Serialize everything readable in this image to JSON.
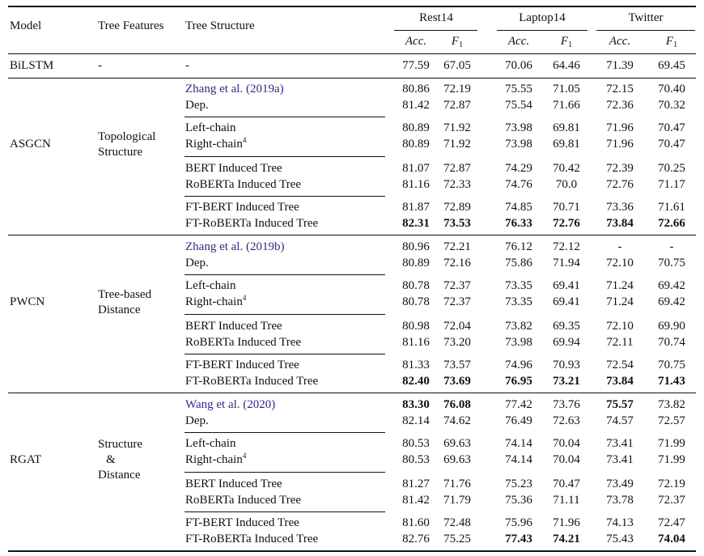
{
  "header": {
    "model": "Model",
    "features": "Tree Features",
    "structure": "Tree Structure",
    "datasets": [
      "Rest14",
      "Laptop14",
      "Twitter"
    ],
    "metrics": [
      {
        "base": "Acc.",
        "sub": ""
      },
      {
        "base": "F",
        "sub": "1"
      }
    ]
  },
  "baseline": {
    "model": "BiLSTM",
    "features": "-",
    "structure": "-",
    "values": [
      "77.59",
      "67.05",
      "70.06",
      "64.46",
      "71.39",
      "69.45"
    ]
  },
  "sections": [
    {
      "model": "ASGCN",
      "features": [
        "Topological",
        "Structure"
      ],
      "rows": [
        {
          "structure": "Zhang et al. (2019a)",
          "link": true,
          "values": [
            "80.86",
            "72.19",
            "75.55",
            "71.05",
            "72.15",
            "70.40"
          ],
          "bold": []
        },
        {
          "structure": "Dep.",
          "values": [
            "81.42",
            "72.87",
            "75.54",
            "71.66",
            "72.36",
            "70.32"
          ],
          "bold": []
        },
        {
          "structure": "Left-chain",
          "values": [
            "80.89",
            "71.92",
            "73.98",
            "69.81",
            "71.96",
            "70.47"
          ],
          "bold": []
        },
        {
          "structure": "Right-chain",
          "sup": "4",
          "values": [
            "80.89",
            "71.92",
            "73.98",
            "69.81",
            "71.96",
            "70.47"
          ],
          "bold": []
        },
        {
          "structure": "BERT Induced Tree",
          "values": [
            "81.07",
            "72.87",
            "74.29",
            "70.42",
            "72.39",
            "70.25"
          ],
          "bold": []
        },
        {
          "structure": "RoBERTa Induced Tree",
          "values": [
            "81.16",
            "72.33",
            "74.76",
            "70.0",
            "72.76",
            "71.17"
          ],
          "bold": []
        },
        {
          "structure": "FT-BERT Induced Tree",
          "values": [
            "81.87",
            "72.89",
            "74.85",
            "70.71",
            "73.36",
            "71.61"
          ],
          "bold": []
        },
        {
          "structure": "FT-RoBERTa Induced Tree",
          "values": [
            "82.31",
            "73.53",
            "76.33",
            "72.76",
            "73.84",
            "72.66"
          ],
          "bold": [
            0,
            1,
            2,
            3,
            4,
            5
          ]
        }
      ]
    },
    {
      "model": "PWCN",
      "features": [
        "Tree-based",
        "Distance"
      ],
      "rows": [
        {
          "structure": "Zhang et al. (2019b)",
          "link": true,
          "values": [
            "80.96",
            "72.21",
            "76.12",
            "72.12",
            "-",
            "-"
          ],
          "bold": []
        },
        {
          "structure": "Dep.",
          "values": [
            "80.89",
            "72.16",
            "75.86",
            "71.94",
            "72.10",
            "70.75"
          ],
          "bold": []
        },
        {
          "structure": "Left-chain",
          "values": [
            "80.78",
            "72.37",
            "73.35",
            "69.41",
            "71.24",
            "69.42"
          ],
          "bold": []
        },
        {
          "structure": "Right-chain",
          "sup": "4",
          "values": [
            "80.78",
            "72.37",
            "73.35",
            "69.41",
            "71.24",
            "69.42"
          ],
          "bold": []
        },
        {
          "structure": "BERT Induced Tree",
          "values": [
            "80.98",
            "72.04",
            "73.82",
            "69.35",
            "72.10",
            "69.90"
          ],
          "bold": []
        },
        {
          "structure": "RoBERTa Induced Tree",
          "values": [
            "81.16",
            "73.20",
            "73.98",
            "69.94",
            "72.11",
            "70.74"
          ],
          "bold": []
        },
        {
          "structure": "FT-BERT Induced Tree",
          "values": [
            "81.33",
            "73.57",
            "74.96",
            "70.93",
            "72.54",
            "70.75"
          ],
          "bold": []
        },
        {
          "structure": "FT-RoBERTa Induced Tree",
          "values": [
            "82.40",
            "73.69",
            "76.95",
            "73.21",
            "73.84",
            "71.43"
          ],
          "bold": [
            0,
            1,
            2,
            3,
            4,
            5
          ]
        }
      ]
    },
    {
      "model": "RGAT",
      "features": [
        "Structure",
        "&",
        "Distance"
      ],
      "rows": [
        {
          "structure": "Wang et al. (2020)",
          "link": true,
          "values": [
            "83.30",
            "76.08",
            "77.42",
            "73.76",
            "75.57",
            "73.82"
          ],
          "bold": [
            0,
            1,
            4
          ]
        },
        {
          "structure": "Dep.",
          "values": [
            "82.14",
            "74.62",
            "76.49",
            "72.63",
            "74.57",
            "72.57"
          ],
          "bold": []
        },
        {
          "structure": "Left-chain",
          "values": [
            "80.53",
            "69.63",
            "74.14",
            "70.04",
            "73.41",
            "71.99"
          ],
          "bold": []
        },
        {
          "structure": "Right-chain",
          "sup": "4",
          "values": [
            "80.53",
            "69.63",
            "74.14",
            "70.04",
            "73.41",
            "71.99"
          ],
          "bold": []
        },
        {
          "structure": "BERT Induced Tree",
          "values": [
            "81.27",
            "71.76",
            "75.23",
            "70.47",
            "73.49",
            "72.19"
          ],
          "bold": []
        },
        {
          "structure": "RoBERTa Induced Tree",
          "values": [
            "81.42",
            "71.79",
            "75.36",
            "71.11",
            "73.78",
            "72.37"
          ],
          "bold": []
        },
        {
          "structure": "FT-BERT Induced Tree",
          "values": [
            "81.60",
            "72.48",
            "75.96",
            "71.96",
            "74.13",
            "72.47"
          ],
          "bold": []
        },
        {
          "structure": "FT-RoBERTa Induced Tree",
          "values": [
            "82.76",
            "75.25",
            "77.43",
            "74.21",
            "75.43",
            "74.04"
          ],
          "bold": [
            2,
            3,
            5
          ]
        }
      ]
    }
  ]
}
